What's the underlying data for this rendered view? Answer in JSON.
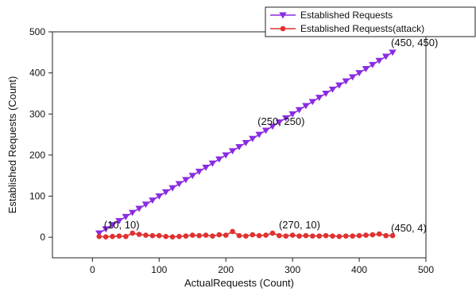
{
  "chart_data": {
    "type": "line",
    "xlabel": "ActualRequests (Count)",
    "ylabel": "Established Requests (Count)",
    "xlim": [
      -60,
      500
    ],
    "ylim": [
      -50,
      500
    ],
    "x_ticks": [
      0,
      100,
      200,
      300,
      400,
      500
    ],
    "y_ticks": [
      0,
      100,
      200,
      300,
      400,
      500
    ],
    "grid": false,
    "legend_placement": "top-right",
    "series": [
      {
        "name": "Established Requests",
        "color": "#8a2be2",
        "marker": "triangle-down",
        "x": [
          10,
          20,
          30,
          40,
          50,
          60,
          70,
          80,
          90,
          100,
          110,
          120,
          130,
          140,
          150,
          160,
          170,
          180,
          190,
          200,
          210,
          220,
          230,
          240,
          250,
          260,
          270,
          280,
          290,
          300,
          310,
          320,
          330,
          340,
          350,
          360,
          370,
          380,
          390,
          400,
          410,
          420,
          430,
          440,
          450
        ],
        "y": [
          10,
          20,
          30,
          40,
          50,
          60,
          70,
          80,
          90,
          100,
          110,
          120,
          130,
          140,
          150,
          160,
          170,
          180,
          190,
          200,
          210,
          220,
          230,
          240,
          250,
          260,
          270,
          280,
          290,
          300,
          310,
          320,
          330,
          340,
          350,
          360,
          370,
          380,
          390,
          400,
          410,
          420,
          430,
          440,
          450
        ]
      },
      {
        "name": "Established Requests(attack)",
        "color": "#e03131",
        "marker": "circle",
        "x": [
          10,
          20,
          30,
          40,
          50,
          60,
          70,
          80,
          90,
          100,
          110,
          120,
          130,
          140,
          150,
          160,
          170,
          180,
          190,
          200,
          210,
          220,
          230,
          240,
          250,
          260,
          270,
          280,
          290,
          300,
          310,
          320,
          330,
          340,
          350,
          360,
          370,
          380,
          390,
          400,
          410,
          420,
          430,
          440,
          450
        ],
        "y": [
          2,
          1,
          2,
          3,
          2,
          10,
          7,
          5,
          4,
          4,
          2,
          1,
          2,
          3,
          5,
          4,
          5,
          3,
          6,
          5,
          14,
          4,
          3,
          6,
          4,
          5,
          10,
          4,
          3,
          5,
          3,
          4,
          3,
          3,
          4,
          3,
          2,
          3,
          3,
          4,
          5,
          6,
          8,
          4,
          4
        ]
      }
    ],
    "annotations": [
      {
        "text": "(10, 10)",
        "x": 10,
        "y": 10
      },
      {
        "text": "(250, 250)",
        "x": 250,
        "y": 250
      },
      {
        "text": "(450, 450)",
        "x": 450,
        "y": 450
      },
      {
        "text": "(270, 10)",
        "x": 270,
        "y": 10
      },
      {
        "text": "(450, 4)",
        "x": 450,
        "y": 4
      }
    ]
  }
}
